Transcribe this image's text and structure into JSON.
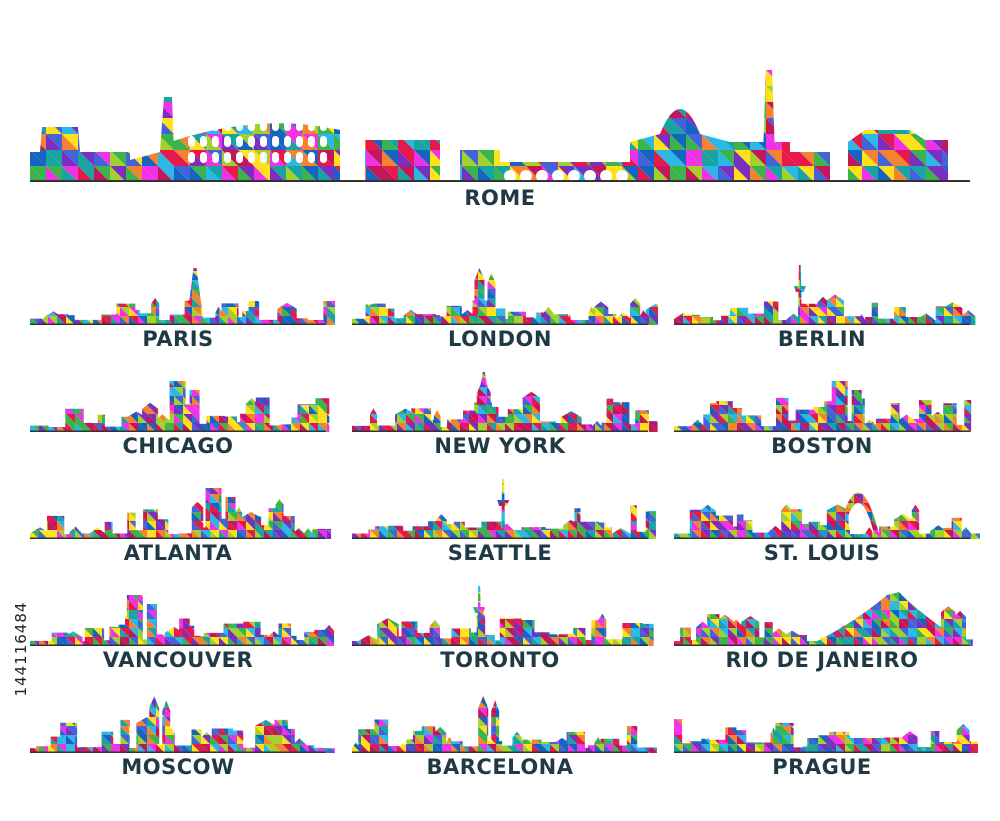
{
  "palette": [
    "#e6194b",
    "#f58231",
    "#ffe119",
    "#3cb44b",
    "#1aa3a3",
    "#4363d8",
    "#7b2fbe",
    "#f032e6",
    "#a3d12b",
    "#2bb8e6",
    "#c2185b",
    "#1565c0"
  ],
  "watermark": "144116484",
  "rome": {
    "name": "ROME",
    "landmarks": [
      "palazzo-icon",
      "tower-icon",
      "colosseum-icon",
      "arch-icon",
      "bridge-icon",
      "dome-icon",
      "obelisk-icon",
      "monument-icon"
    ]
  },
  "cities": [
    {
      "name": "PARIS",
      "landmark": "eiffel-tower-icon"
    },
    {
      "name": "LONDON",
      "landmark": "big-ben-icon"
    },
    {
      "name": "BERLIN",
      "landmark": "tv-tower-icon"
    },
    {
      "name": "CHICAGO",
      "landmark": "skyscraper-icon"
    },
    {
      "name": "NEW YORK",
      "landmark": "empire-state-icon"
    },
    {
      "name": "BOSTON",
      "landmark": "skyscraper-icon"
    },
    {
      "name": "ATLANTA",
      "landmark": "skyscraper-icon"
    },
    {
      "name": "SEATTLE",
      "landmark": "space-needle-icon"
    },
    {
      "name": "ST. LOUIS",
      "landmark": "gateway-arch-icon"
    },
    {
      "name": "VANCOUVER",
      "landmark": "skyscraper-icon"
    },
    {
      "name": "TORONTO",
      "landmark": "cn-tower-icon"
    },
    {
      "name": "RIO DE JANEIRO",
      "landmark": "mountain-icon"
    },
    {
      "name": "MOSCOW",
      "landmark": "spire-icon"
    },
    {
      "name": "BARCELONA",
      "landmark": "sagrada-familia-icon"
    },
    {
      "name": "PRAGUE",
      "landmark": "bridge-icon"
    }
  ]
}
